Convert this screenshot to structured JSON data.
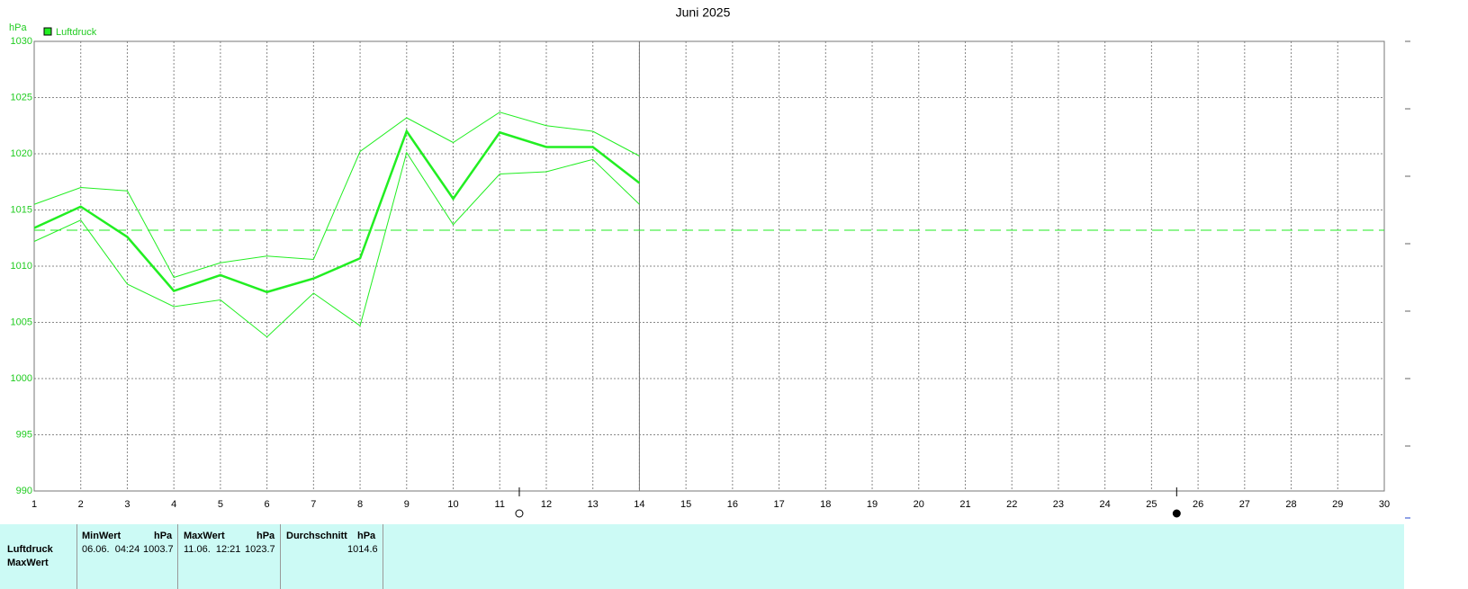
{
  "chart_data": {
    "type": "line",
    "title": "Juni 2025",
    "y_label": "hPa",
    "x": [
      1,
      2,
      3,
      4,
      5,
      6,
      7,
      8,
      9,
      10,
      11,
      12,
      13,
      14
    ],
    "series": [
      {
        "name": "Luftdruck",
        "color": "#22ee22",
        "values": [
          1013.4,
          1015.3,
          1012.6,
          1007.8,
          1009.2,
          1007.7,
          1008.9,
          1010.7,
          1022.0,
          1016.0,
          1021.9,
          1020.6,
          1020.6,
          1017.4
        ],
        "upper": [
          1015.5,
          1017.0,
          1016.7,
          1009.0,
          1010.3,
          1010.9,
          1010.6,
          1020.2,
          1023.2,
          1021.0,
          1023.7,
          1022.5,
          1022.0,
          1019.8
        ],
        "lower": [
          1012.2,
          1014.1,
          1008.4,
          1006.4,
          1007.0,
          1003.7,
          1007.6,
          1004.7,
          1020.1,
          1013.7,
          1018.2,
          1018.4,
          1019.5,
          1015.5
        ]
      }
    ],
    "average_line": 1013.2,
    "moon_x": [
      11.42,
      25.54
    ],
    "xlim": [
      1,
      30
    ],
    "xticks": [
      1,
      2,
      3,
      4,
      5,
      6,
      7,
      8,
      9,
      10,
      11,
      12,
      13,
      14,
      15,
      16,
      17,
      18,
      19,
      20,
      21,
      22,
      23,
      24,
      25,
      26,
      27,
      28,
      29,
      30
    ],
    "ylim": [
      990,
      1030
    ],
    "yticks": [
      990,
      995,
      1000,
      1005,
      1010,
      1015,
      1020,
      1025,
      1030
    ],
    "grid": true
  },
  "table": {
    "row_labels": [
      "Luftdruck",
      "MaxWert"
    ],
    "columns": [
      {
        "title": "MinWert",
        "unit": "hPa",
        "when": "06.06.  04:24",
        "value": "1003.7"
      },
      {
        "title": "MaxWert",
        "unit": "hPa",
        "when": "11.06.  12:21",
        "value": "1023.7"
      },
      {
        "title": "Durchschnitt",
        "unit": "hPa",
        "value": "1014.6"
      }
    ]
  }
}
